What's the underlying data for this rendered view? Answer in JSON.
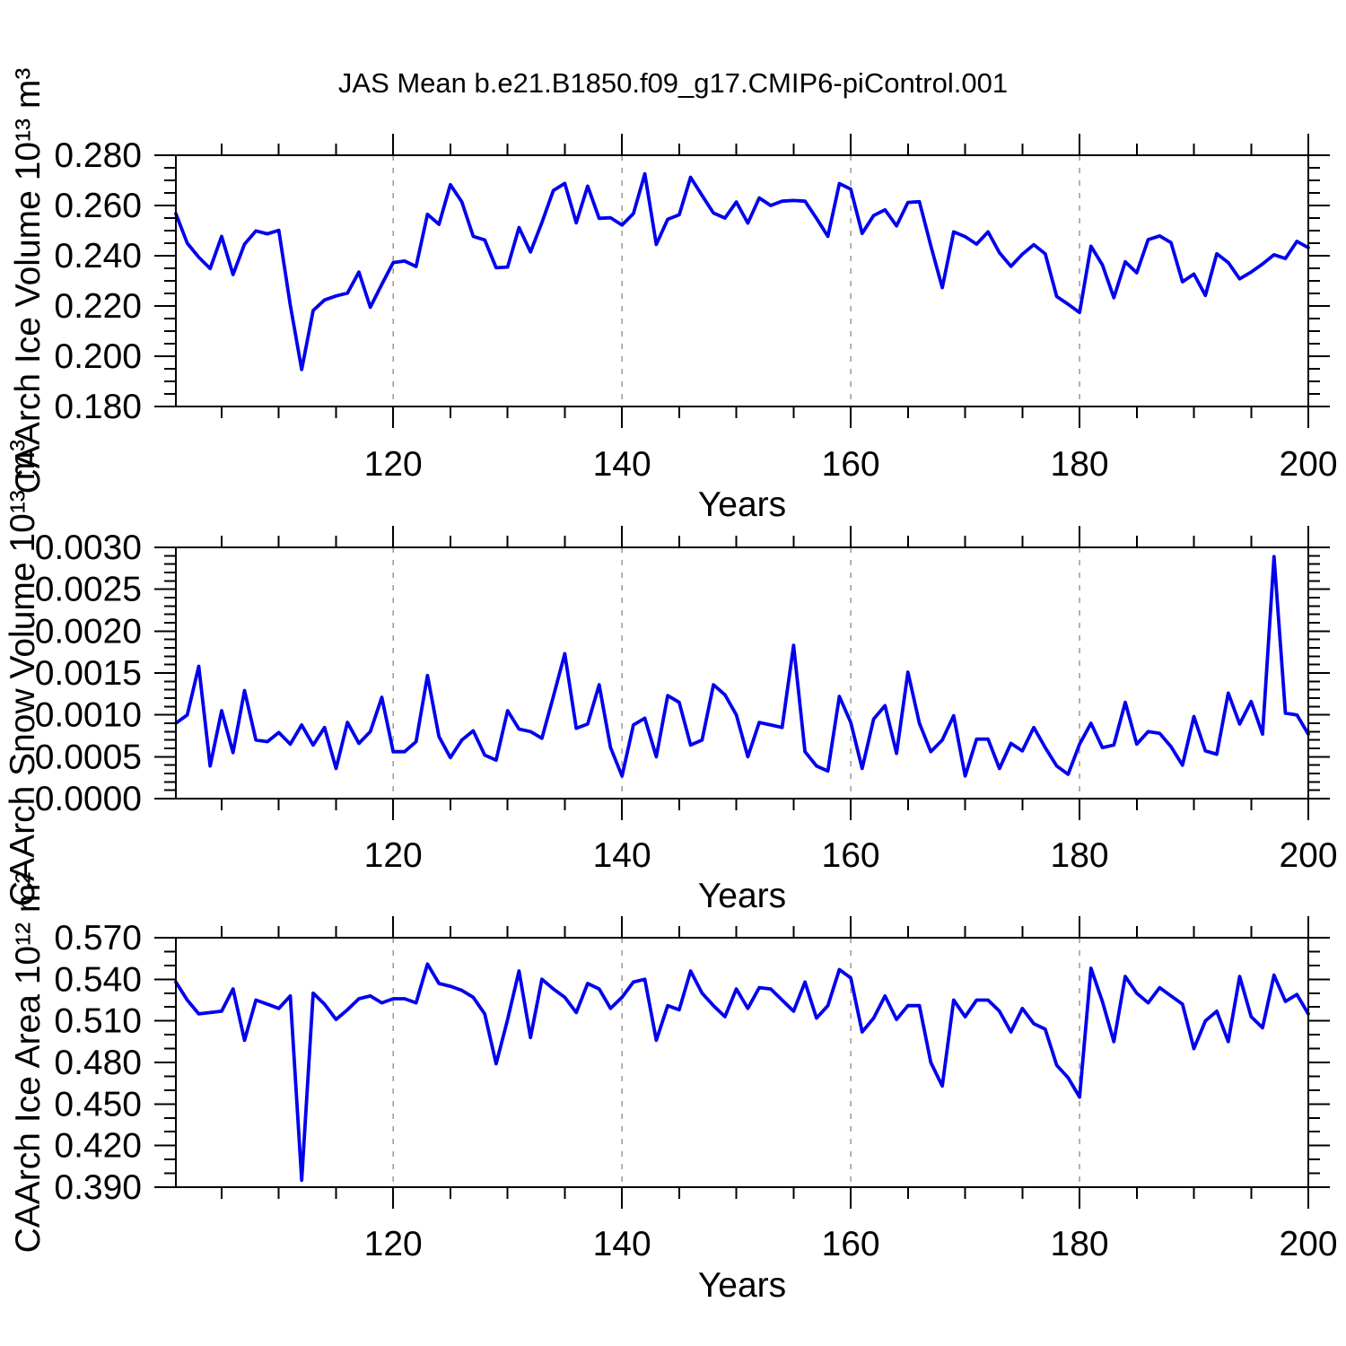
{
  "title": "JAS Mean b.e21.B1850.f09_g17.CMIP6-piControl.001",
  "xlabel": "Years",
  "colors": {
    "line": "#0000EE",
    "grid": "#999999",
    "axis": "#000000"
  },
  "chart_data": [
    {
      "type": "line",
      "name": "caarch-ice-volume",
      "ylabel": "CAArch Ice Volume 10¹³ m³",
      "ymin": 0.18,
      "ymax": 0.28,
      "ytick_step": 0.02,
      "yminor_step": 0.005,
      "ydecimals": 3,
      "x_start": 101,
      "x_end": 200,
      "xticks": [
        120,
        140,
        160,
        180,
        200
      ],
      "xminor_step": 5,
      "grid_years": [
        120,
        140,
        160,
        180
      ],
      "values": [
        0.2567,
        0.245,
        0.2394,
        0.2349,
        0.2477,
        0.2325,
        0.2446,
        0.2499,
        0.2487,
        0.2501,
        0.2204,
        0.1947,
        0.2182,
        0.2224,
        0.224,
        0.2251,
        0.2335,
        0.2195,
        0.2286,
        0.2373,
        0.2379,
        0.2357,
        0.2565,
        0.2525,
        0.2683,
        0.2614,
        0.2477,
        0.2463,
        0.2352,
        0.2355,
        0.2512,
        0.2415,
        0.2532,
        0.266,
        0.2688,
        0.2531,
        0.2677,
        0.2549,
        0.2551,
        0.2522,
        0.2568,
        0.2726,
        0.2445,
        0.2545,
        0.2563,
        0.2712,
        0.264,
        0.257,
        0.255,
        0.2614,
        0.253,
        0.263,
        0.26,
        0.2617,
        0.262,
        0.2617,
        0.2549,
        0.2477,
        0.2687,
        0.2665,
        0.2489,
        0.256,
        0.2583,
        0.2519,
        0.2612,
        0.2615,
        0.244,
        0.2273,
        0.2495,
        0.2476,
        0.2446,
        0.2495,
        0.2412,
        0.2358,
        0.2406,
        0.2444,
        0.2408,
        0.2238,
        0.2207,
        0.2174,
        0.2438,
        0.2364,
        0.2233,
        0.2376,
        0.2332,
        0.2464,
        0.2479,
        0.2452,
        0.2296,
        0.2327,
        0.2242,
        0.2408,
        0.2373,
        0.2308,
        0.2335,
        0.2367,
        0.2404,
        0.2389,
        0.2457,
        0.2432
      ]
    },
    {
      "type": "line",
      "name": "caarch-snow-volume",
      "ylabel": "CAArch Snow Volume 10¹³ m³",
      "ymin": 0.0,
      "ymax": 0.003,
      "ytick_step": 0.0005,
      "yminor_step": 0.0001,
      "ydecimals": 4,
      "x_start": 101,
      "x_end": 200,
      "xticks": [
        120,
        140,
        160,
        180,
        200
      ],
      "xminor_step": 5,
      "grid_years": [
        120,
        140,
        160,
        180
      ],
      "values": [
        0.0009,
        0.001,
        0.00158,
        0.00039,
        0.00105,
        0.00055,
        0.00129,
        0.0007,
        0.00068,
        0.00079,
        0.00065,
        0.00088,
        0.00064,
        0.00085,
        0.00036,
        0.00091,
        0.00066,
        0.0008,
        0.00121,
        0.00056,
        0.00056,
        0.00068,
        0.00147,
        0.00074,
        0.00049,
        0.0007,
        0.00081,
        0.00052,
        0.00046,
        0.00105,
        0.00083,
        0.0008,
        0.00072,
        0.00122,
        0.00173,
        0.00084,
        0.00089,
        0.00136,
        0.00061,
        0.00027,
        0.00088,
        0.00096,
        0.0005,
        0.00123,
        0.00115,
        0.00064,
        0.0007,
        0.00136,
        0.00124,
        0.001,
        0.0005,
        0.00091,
        0.00088,
        0.00085,
        0.00183,
        0.00056,
        0.00039,
        0.00033,
        0.00122,
        0.00091,
        0.00036,
        0.00095,
        0.00111,
        0.00054,
        0.00151,
        0.0009,
        0.00056,
        0.0007,
        0.00099,
        0.00027,
        0.00071,
        0.00071,
        0.00036,
        0.00066,
        0.00057,
        0.00085,
        0.00061,
        0.00039,
        0.00029,
        0.00065,
        0.0009,
        0.00061,
        0.00064,
        0.00115,
        0.00065,
        0.0008,
        0.00078,
        0.00062,
        0.0004,
        0.00098,
        0.00057,
        0.00053,
        0.00126,
        0.00089,
        0.00116,
        0.00077,
        0.00289,
        0.00102,
        0.001,
        0.00077
      ]
    },
    {
      "type": "line",
      "name": "caarch-ice-area",
      "ylabel": "CAArch Ice Area 10¹² m²",
      "ymin": 0.39,
      "ymax": 0.57,
      "ytick_step": 0.03,
      "yminor_step": 0.01,
      "ydecimals": 3,
      "x_start": 101,
      "x_end": 200,
      "xticks": [
        120,
        140,
        160,
        180,
        200
      ],
      "xminor_step": 5,
      "grid_years": [
        120,
        140,
        160,
        180
      ],
      "values": [
        0.538,
        0.525,
        0.515,
        0.516,
        0.517,
        0.533,
        0.496,
        0.525,
        0.522,
        0.519,
        0.528,
        0.395,
        0.53,
        0.522,
        0.511,
        0.518,
        0.526,
        0.528,
        0.523,
        0.526,
        0.526,
        0.523,
        0.551,
        0.537,
        0.535,
        0.532,
        0.527,
        0.515,
        0.479,
        0.511,
        0.546,
        0.498,
        0.54,
        0.533,
        0.527,
        0.516,
        0.537,
        0.533,
        0.519,
        0.527,
        0.538,
        0.54,
        0.496,
        0.521,
        0.518,
        0.546,
        0.53,
        0.521,
        0.513,
        0.533,
        0.519,
        0.534,
        0.533,
        0.525,
        0.517,
        0.538,
        0.512,
        0.521,
        0.547,
        0.541,
        0.502,
        0.512,
        0.528,
        0.511,
        0.521,
        0.521,
        0.48,
        0.463,
        0.525,
        0.513,
        0.525,
        0.525,
        0.517,
        0.502,
        0.519,
        0.508,
        0.504,
        0.478,
        0.469,
        0.455,
        0.548,
        0.524,
        0.495,
        0.542,
        0.53,
        0.523,
        0.534,
        0.528,
        0.522,
        0.49,
        0.51,
        0.517,
        0.495,
        0.542,
        0.513,
        0.505,
        0.543,
        0.524,
        0.529,
        0.515
      ]
    }
  ]
}
